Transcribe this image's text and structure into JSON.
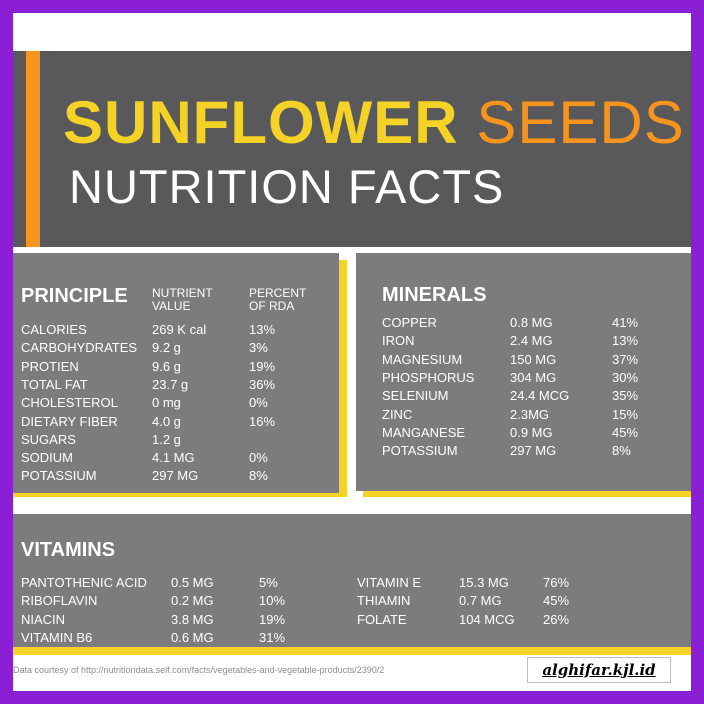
{
  "title": {
    "word1": "SUNFLOWER",
    "word2": "SEEDS",
    "subtitle": "NUTRITION FACTS"
  },
  "principle": {
    "heading": "PRINCIPLE",
    "col_value": "NUTRIENT\nVALUE",
    "col_rda": "PERCENT\nOF RDA",
    "rows": [
      {
        "name": "CALORIES",
        "value": "269 K cal",
        "rda": "13%"
      },
      {
        "name": "CARBOHYDRATES",
        "value": "9.2 g",
        "rda": "3%"
      },
      {
        "name": "PROTIEN",
        "value": "9.6 g",
        "rda": "19%"
      },
      {
        "name": "TOTAL FAT",
        "value": "23.7 g",
        "rda": "36%"
      },
      {
        "name": "CHOLESTEROL",
        "value": "0 mg",
        "rda": "0%"
      },
      {
        "name": "DIETARY FIBER",
        "value": "4.0 g",
        "rda": "16%"
      },
      {
        "name": "SUGARS",
        "value": "1.2 g",
        "rda": ""
      },
      {
        "name": "SODIUM",
        "value": "4.1 MG",
        "rda": "0%"
      },
      {
        "name": "POTASSIUM",
        "value": "297 MG",
        "rda": "8%"
      }
    ]
  },
  "minerals": {
    "heading": "MINERALS",
    "rows": [
      {
        "name": "COPPER",
        "value": "0.8 MG",
        "rda": "41%"
      },
      {
        "name": "IRON",
        "value": "2.4 MG",
        "rda": "13%"
      },
      {
        "name": "MAGNESIUM",
        "value": "150 MG",
        "rda": "37%"
      },
      {
        "name": "PHOSPHORUS",
        "value": "304 MG",
        "rda": "30%"
      },
      {
        "name": "SELENIUM",
        "value": "24.4 MCG",
        "rda": "35%"
      },
      {
        "name": "ZINC",
        "value": "2.3MG",
        "rda": "15%"
      },
      {
        "name": "MANGANESE",
        "value": "0.9 MG",
        "rda": "45%"
      },
      {
        "name": "POTASSIUM",
        "value": "297 MG",
        "rda": "8%"
      }
    ]
  },
  "vitamins": {
    "heading": "VITAMINS",
    "left": [
      {
        "name": "PANTOTHENIC ACID",
        "value": "0.5 MG",
        "rda": "5%"
      },
      {
        "name": "RIBOFLAVIN",
        "value": "0.2 MG",
        "rda": "10%"
      },
      {
        "name": "NIACIN",
        "value": "3.8 MG",
        "rda": "19%"
      },
      {
        "name": "VITAMIN B6",
        "value": "0.6 MG",
        "rda": "31%"
      }
    ],
    "right": [
      {
        "name": "VITAMIN E",
        "value": "15.3 MG",
        "rda": "76%"
      },
      {
        "name": "THIAMIN",
        "value": "0.7 MG",
        "rda": "45%"
      },
      {
        "name": "FOLATE",
        "value": "104 MCG",
        "rda": "26%"
      }
    ]
  },
  "footnote": "Data courtesy of http://nutritiondata.self.com/facts/vegetables-and-vegetable-products/2390/2",
  "watermark": "alghifar.kjl.id",
  "colors": {
    "frame": "#8a1fd6",
    "header_bg": "#59595b",
    "panel_bg": "#7c7c7e",
    "yellow": "#f5d226",
    "orange": "#f7941d"
  }
}
